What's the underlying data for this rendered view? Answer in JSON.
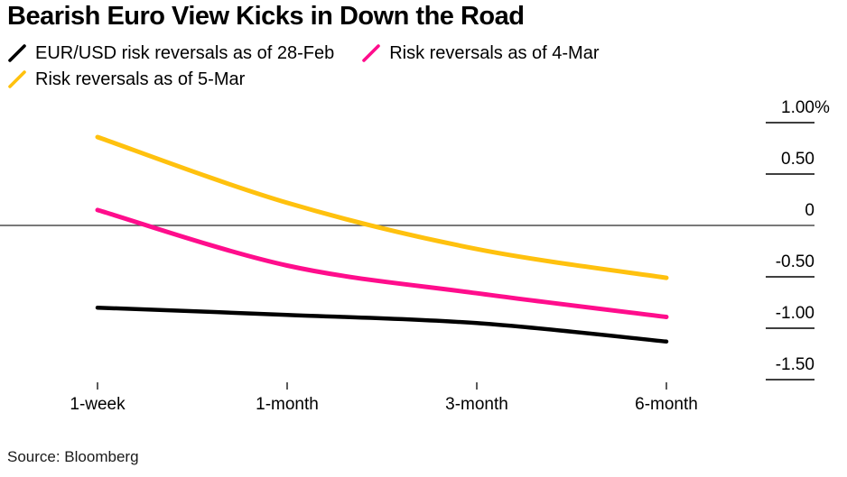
{
  "title": "Bearish Euro View Kicks in Down the Road",
  "source": "Source: Bloomberg",
  "colors": {
    "background": "#ffffff",
    "zero_line": "#4d4d4d",
    "axis_tick": "#3f3f3f",
    "x_tick": "#333333",
    "text": "#000000"
  },
  "chart_data": {
    "type": "line",
    "title": "Bearish Euro View Kicks in Down the Road",
    "categories": [
      "1-week",
      "1-month",
      "3-month",
      "6-month"
    ],
    "series": [
      {
        "name": "EUR/USD risk reversals as of 28-Feb",
        "color": "#000000",
        "values": [
          -0.8,
          -0.87,
          -0.95,
          -1.13
        ]
      },
      {
        "name": "Risk reversals as of 4-Mar",
        "color": "#ff0d8c",
        "values": [
          0.15,
          -0.39,
          -0.66,
          -0.89
        ]
      },
      {
        "name": "Risk reversals as of 5-Mar",
        "color": "#ffc10e",
        "values": [
          0.86,
          0.22,
          -0.23,
          -0.51
        ]
      }
    ],
    "y_axis": {
      "unit": "%",
      "ticks": [
        1.0,
        0.5,
        0,
        -0.5,
        -1.0,
        -1.5
      ],
      "tick_labels": [
        "1.00%",
        "0.50",
        "0",
        "-0.50",
        "-1.00",
        "-1.50"
      ]
    },
    "ylim": [
      -1.75,
      1.25
    ],
    "grid": "short right-side ticks; full-width zero line",
    "legend_position": "top-left"
  }
}
